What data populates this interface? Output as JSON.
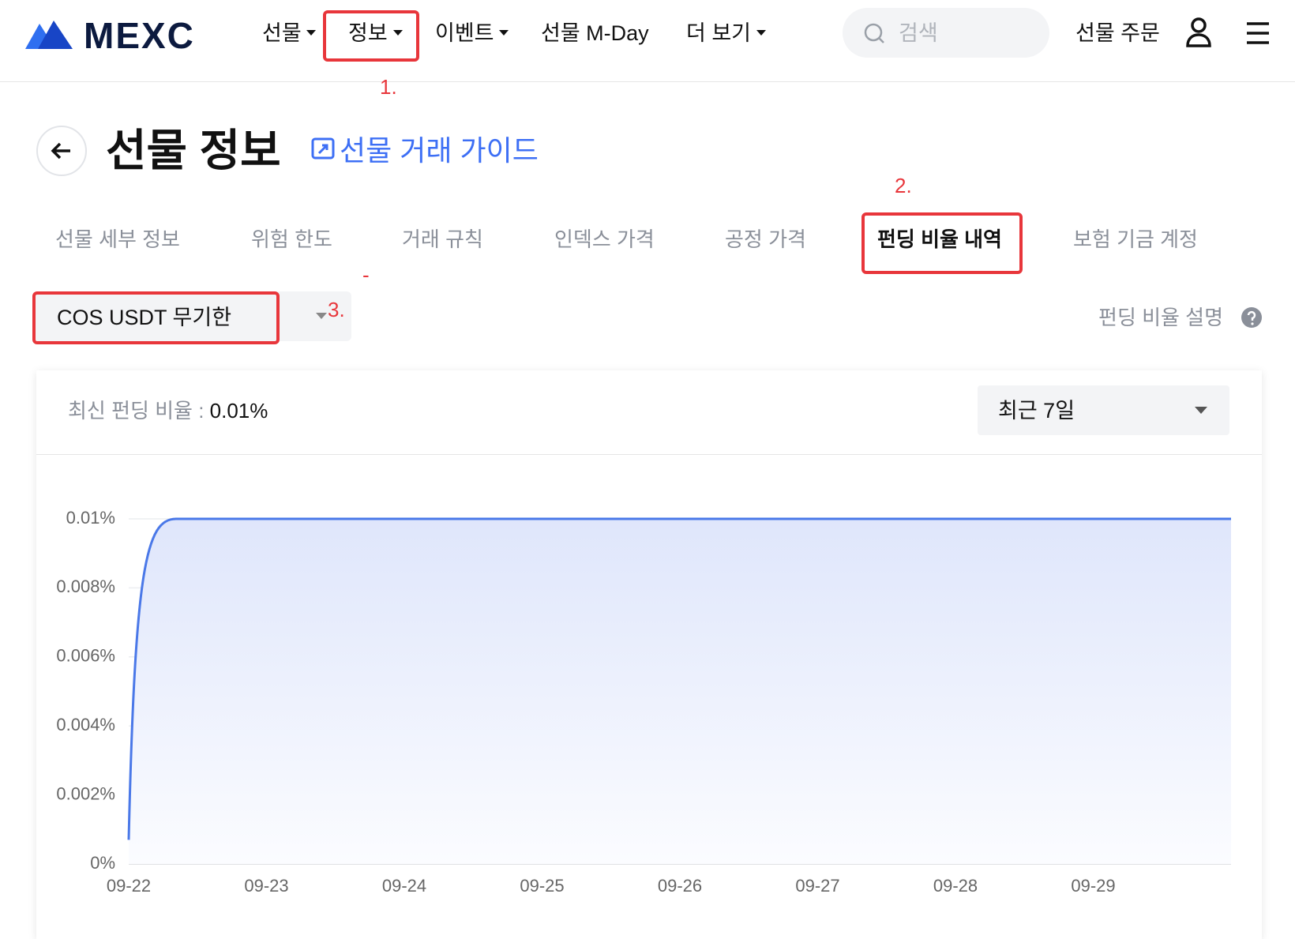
{
  "header": {
    "logo": "MEXC",
    "nav": [
      "선물",
      "정보",
      "이벤트",
      "선물 M-Day",
      "더 보기"
    ],
    "search_placeholder": "검색",
    "order": "선물 주문"
  },
  "annotations": [
    "1.",
    "2.",
    "3.",
    "-"
  ],
  "page": {
    "title": "선물 정보",
    "guide_link": "선물 거래 가이드"
  },
  "tabs": [
    "선물 세부 정보",
    "위험 한도",
    "거래 규칙",
    "인덱스 가격",
    "공정 가격",
    "펀딩 비율 내역",
    "보험 기금 계정"
  ],
  "active_tab": 5,
  "selector": "COS USDT 무기한",
  "help": "펀딩 비율 설명",
  "chart_panel": {
    "latest_label": "최신 펀딩 비율 :",
    "latest_value": "0.01%",
    "range": "최근 7일"
  },
  "chart_data": {
    "type": "area",
    "x": [
      "09-22",
      "09-23",
      "09-24",
      "09-25",
      "09-26",
      "09-27",
      "09-28",
      "09-29",
      null
    ],
    "series": [
      {
        "color": "#4a78e8",
        "values": [
          0.0007,
          0.01,
          0.01,
          0.01,
          0.01,
          0.01,
          0.01,
          0.01,
          0.01
        ]
      }
    ],
    "ylim": [
      0,
      0.01
    ],
    "yticks": [
      {
        "value": 0,
        "label": "0%"
      },
      {
        "value": 0.002,
        "label": "0.002%"
      },
      {
        "value": 0.004,
        "label": "0.004%"
      },
      {
        "value": 0.006,
        "label": "0.006%"
      },
      {
        "value": 0.008,
        "label": "0.008%"
      },
      {
        "value": 0.01,
        "label": "0.01%"
      }
    ],
    "grid": true
  }
}
